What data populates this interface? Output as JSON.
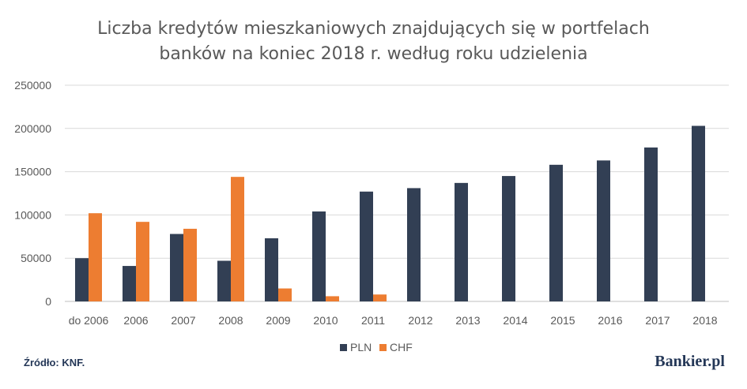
{
  "chart_data": {
    "type": "bar",
    "title_lines": [
      "Liczba kredytów mieszkaniowych znajdujących się w portfelach",
      "banków na koniec 2018 r. według roku udzielenia"
    ],
    "categories": [
      "do 2006",
      "2006",
      "2007",
      "2008",
      "2009",
      "2010",
      "2011",
      "2012",
      "2013",
      "2014",
      "2015",
      "2016",
      "2017",
      "2018"
    ],
    "series": [
      {
        "name": "PLN",
        "color": "#323f54",
        "values": [
          50000,
          41000,
          78000,
          47000,
          73000,
          104000,
          127000,
          131000,
          137000,
          145000,
          158000,
          163000,
          178000,
          203000
        ]
      },
      {
        "name": "CHF",
        "color": "#ed7d31",
        "values": [
          102000,
          92000,
          84000,
          144000,
          15000,
          6000,
          8000,
          0,
          0,
          0,
          0,
          0,
          0,
          0
        ]
      }
    ],
    "ylim": [
      0,
      250000
    ],
    "yticks": [
      0,
      50000,
      100000,
      150000,
      200000,
      250000
    ],
    "grid": true,
    "legend": "bottom"
  },
  "footer": {
    "source": "Źródło: KNF.",
    "logo": "Bankier.pl"
  }
}
